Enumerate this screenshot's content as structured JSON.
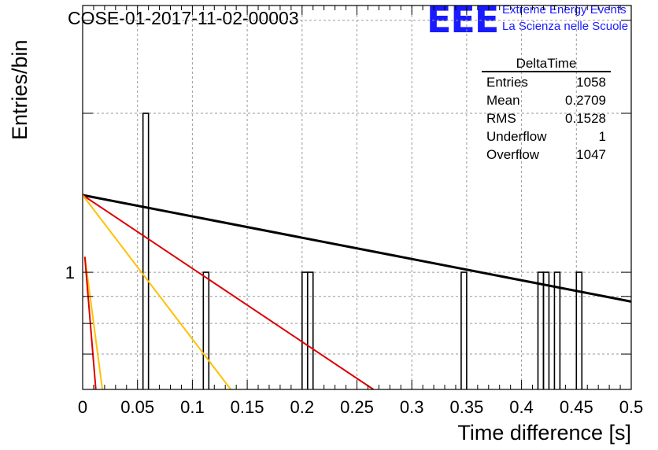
{
  "header": {
    "title": "COSE-01-2017-11-02-00003",
    "logo_mark": "EEE",
    "logo_line1": "Extreme Energy Events",
    "logo_line2": "La Scienza nelle Scuole"
  },
  "stats_box": {
    "title": "DeltaTime",
    "rows": [
      {
        "label": "Entries",
        "value": "1058"
      },
      {
        "label": "Mean",
        "value": "0.2709"
      },
      {
        "label": "RMS",
        "value": "0.1528"
      },
      {
        "label": "Underflow",
        "value": "1"
      },
      {
        "label": "Overflow",
        "value": "1047"
      }
    ]
  },
  "chart_data": {
    "type": "bar",
    "title": "COSE-01-2017-11-02-00003",
    "xlabel": "Time difference [s]",
    "ylabel": "Entries/bin",
    "xlim": [
      0,
      0.5
    ],
    "ylim_log": [
      0.6,
      3.2
    ],
    "log_y": true,
    "grid": true,
    "x_ticks": [
      "0",
      "0.05",
      "0.1",
      "0.15",
      "0.2",
      "0.25",
      "0.3",
      "0.35",
      "0.4",
      "0.45",
      "0.5"
    ],
    "x_tick_values": [
      0,
      0.05,
      0.1,
      0.15,
      0.2,
      0.25,
      0.3,
      0.35,
      0.4,
      0.45,
      0.5
    ],
    "y_ticks": [
      "1"
    ],
    "y_tick_values": [
      1
    ],
    "bin_width": 0.005,
    "bins": [
      {
        "x": 0.055,
        "count": 2
      },
      {
        "x": 0.11,
        "count": 1
      },
      {
        "x": 0.2,
        "count": 1
      },
      {
        "x": 0.205,
        "count": 1
      },
      {
        "x": 0.345,
        "count": 1
      },
      {
        "x": 0.415,
        "count": 1
      },
      {
        "x": 0.42,
        "count": 1
      },
      {
        "x": 0.43,
        "count": 1
      },
      {
        "x": 0.45,
        "count": 1
      }
    ],
    "fits": [
      {
        "color": "#000000",
        "points": [
          [
            0,
            1.4
          ],
          [
            0.5,
            0.88
          ]
        ]
      },
      {
        "color": "#dd0000",
        "points": [
          [
            0,
            1.4
          ],
          [
            0.265,
            0.6
          ]
        ]
      },
      {
        "color": "#ffc000",
        "points": [
          [
            0,
            1.4
          ],
          [
            0.135,
            0.6
          ]
        ]
      },
      {
        "color": "#ffc000",
        "points": [
          [
            0.002,
            1.07
          ],
          [
            0.018,
            0.6
          ]
        ]
      },
      {
        "color": "#dd0000",
        "points": [
          [
            0.002,
            1.07
          ],
          [
            0.012,
            0.6
          ]
        ]
      }
    ]
  }
}
